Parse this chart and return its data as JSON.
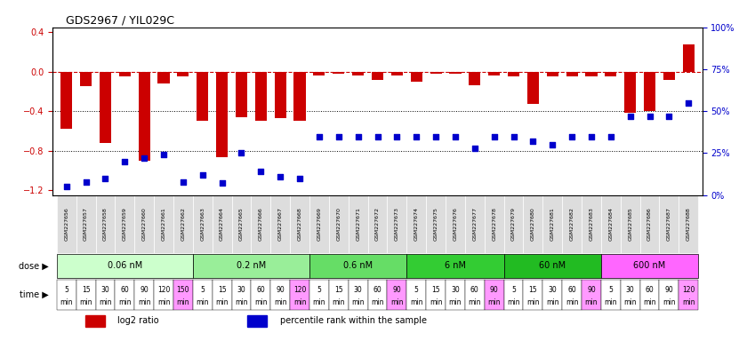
{
  "title": "GDS2967 / YIL029C",
  "samples": [
    "GSM227656",
    "GSM227657",
    "GSM227658",
    "GSM227659",
    "GSM227660",
    "GSM227661",
    "GSM227662",
    "GSM227663",
    "GSM227664",
    "GSM227665",
    "GSM227666",
    "GSM227667",
    "GSM227668",
    "GSM227669",
    "GSM227670",
    "GSM227671",
    "GSM227672",
    "GSM227673",
    "GSM227674",
    "GSM227675",
    "GSM227676",
    "GSM227677",
    "GSM227678",
    "GSM227679",
    "GSM227680",
    "GSM227681",
    "GSM227682",
    "GSM227683",
    "GSM227684",
    "GSM227685",
    "GSM227686",
    "GSM227687",
    "GSM227688"
  ],
  "log2_ratio": [
    -0.58,
    -0.15,
    -0.72,
    -0.05,
    -0.9,
    -0.12,
    -0.05,
    -0.5,
    -0.87,
    -0.46,
    -0.5,
    -0.47,
    -0.5,
    -0.04,
    -0.02,
    -0.04,
    -0.08,
    -0.04,
    -0.1,
    -0.02,
    -0.02,
    -0.14,
    -0.04,
    -0.05,
    -0.33,
    -0.05,
    -0.05,
    -0.05,
    -0.05,
    -0.42,
    -0.4,
    -0.08,
    0.28
  ],
  "percentile": [
    5,
    8,
    10,
    20,
    22,
    24,
    8,
    12,
    7,
    25,
    14,
    11,
    10,
    35,
    35,
    35,
    35,
    35,
    35,
    35,
    35,
    28,
    35,
    35,
    32,
    30,
    35,
    35,
    35,
    47,
    47,
    47,
    55
  ],
  "dose_groups": [
    {
      "label": "0.06 nM",
      "start": 0,
      "end": 7,
      "color": "#ccffcc"
    },
    {
      "label": "0.2 nM",
      "start": 7,
      "end": 13,
      "color": "#99ee99"
    },
    {
      "label": "0.6 nM",
      "start": 13,
      "end": 18,
      "color": "#66dd66"
    },
    {
      "label": "6 nM",
      "start": 18,
      "end": 23,
      "color": "#33cc33"
    },
    {
      "label": "60 nM",
      "start": 23,
      "end": 28,
      "color": "#22bb22"
    },
    {
      "label": "600 nM",
      "start": 28,
      "end": 33,
      "color": "#ff66ff"
    }
  ],
  "time_labels_per_group": [
    [
      "5\nmin",
      "15\nmin",
      "30\nmin",
      "60\nmin",
      "90\nmin",
      "120\nmin",
      "150\nmin"
    ],
    [
      "5\nmin",
      "15\nmin",
      "30\nmin",
      "60\nmin",
      "90\nmin",
      "120\nmin"
    ],
    [
      "5\nmin",
      "15\nmin",
      "30\nmin",
      "60\nmin",
      "90\nmin"
    ],
    [
      "5\nmin",
      "15\nmin",
      "30\nmin",
      "60\nmin",
      "90\nmin"
    ],
    [
      "5\nmin",
      "15\nmin",
      "30\nmin",
      "60\nmin",
      "90\nmin"
    ],
    [
      "5\nmin",
      "30\nmin",
      "60\nmin",
      "90\nmin",
      "120\nmin"
    ]
  ],
  "time_colors_per_group": [
    [
      "#ffffff",
      "#ffffff",
      "#ffffff",
      "#ffffff",
      "#ffffff",
      "#ffffff",
      "#ff99ff"
    ],
    [
      "#ffffff",
      "#ffffff",
      "#ffffff",
      "#ffffff",
      "#ffffff",
      "#ff99ff"
    ],
    [
      "#ffffff",
      "#ffffff",
      "#ffffff",
      "#ffffff",
      "#ff99ff"
    ],
    [
      "#ffffff",
      "#ffffff",
      "#ffffff",
      "#ffffff",
      "#ff99ff"
    ],
    [
      "#ffffff",
      "#ffffff",
      "#ffffff",
      "#ffffff",
      "#ff99ff"
    ],
    [
      "#ffffff",
      "#ffffff",
      "#ffffff",
      "#ffffff",
      "#ff99ff"
    ]
  ],
  "bar_color": "#cc0000",
  "dot_color": "#0000cc",
  "ylim_left": [
    -1.25,
    0.45
  ],
  "ylim_right": [
    0,
    100
  ],
  "yticks_left": [
    -1.2,
    -0.8,
    -0.4,
    0,
    0.4
  ],
  "yticks_right": [
    0,
    25,
    50,
    75,
    100
  ],
  "ytick_labels_right": [
    "0%",
    "25%",
    "50%",
    "75%",
    "100%"
  ]
}
